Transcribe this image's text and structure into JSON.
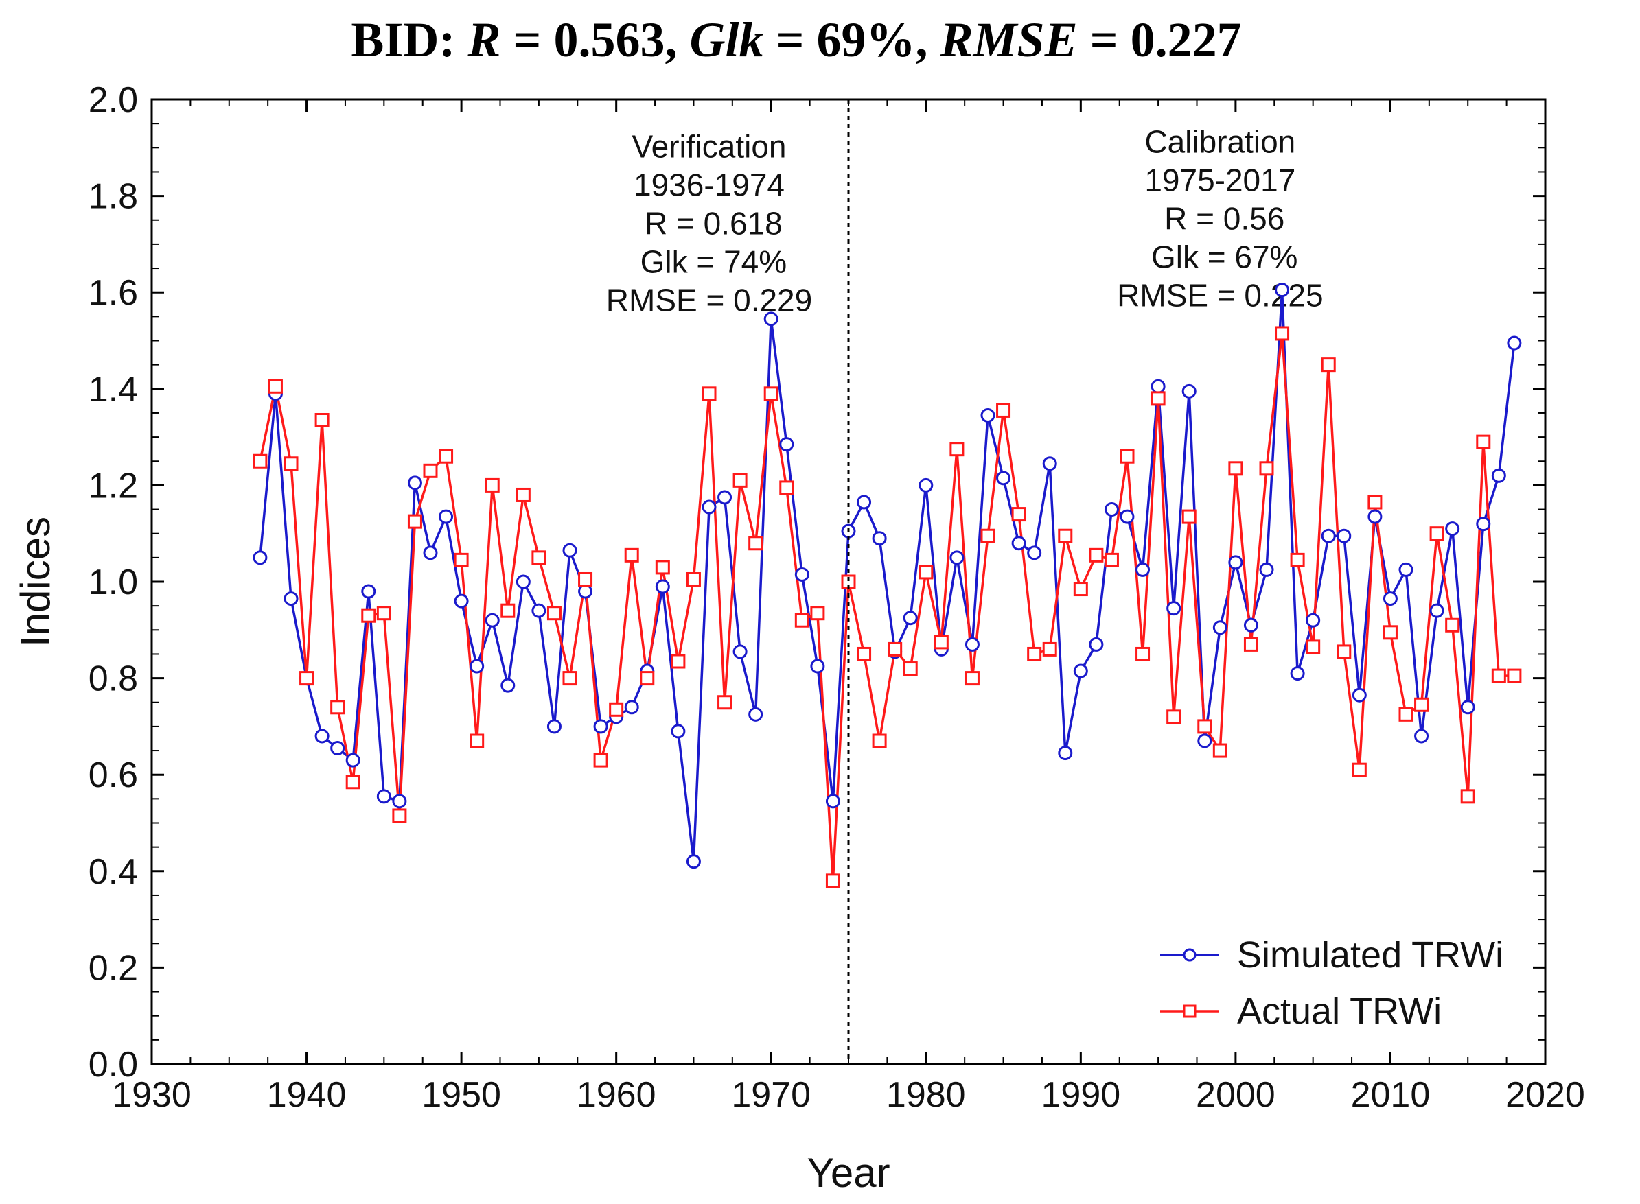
{
  "chart_data": {
    "type": "line",
    "title_parts": [
      {
        "text": "BID: ",
        "italic": false
      },
      {
        "text": "R",
        "italic": true
      },
      {
        "text": " = 0.563, ",
        "italic": false
      },
      {
        "text": "Glk",
        "italic": true
      },
      {
        "text": " = 69%, ",
        "italic": false
      },
      {
        "text": "RMSE",
        "italic": true
      },
      {
        "text": " = 0.227",
        "italic": false
      }
    ],
    "xlabel": "Year",
    "ylabel": "Indices",
    "xlim": [
      1930,
      2020
    ],
    "ylim": [
      0,
      2
    ],
    "x_ticks": [
      1930,
      1940,
      1950,
      1960,
      1970,
      1980,
      1990,
      2000,
      2010,
      2020
    ],
    "y_ticks": [
      "0.0",
      "0.2",
      "0.4",
      "0.6",
      "0.8",
      "1.0",
      "1.2",
      "1.4",
      "1.6",
      "1.8",
      "2.0"
    ],
    "grid": false,
    "legend": "bottom-right",
    "divider_x": 1975,
    "annotations": [
      {
        "x": 1966,
        "y_top": 1.88,
        "lines": [
          "Verification",
          "1936-1974",
          " R = 0.618",
          " Glk = 74%",
          "RMSE = 0.229"
        ]
      },
      {
        "x": 1999,
        "y_top": 1.89,
        "lines": [
          "Calibration",
          "1975-2017",
          " R = 0.56",
          " Glk = 67%",
          "RMSE = 0.225"
        ]
      }
    ],
    "x": [
      1937,
      1938,
      1939,
      1940,
      1941,
      1942,
      1943,
      1944,
      1945,
      1946,
      1947,
      1948,
      1949,
      1950,
      1951,
      1952,
      1953,
      1954,
      1955,
      1956,
      1957,
      1958,
      1959,
      1960,
      1961,
      1962,
      1963,
      1964,
      1965,
      1966,
      1967,
      1968,
      1969,
      1970,
      1971,
      1972,
      1973,
      1974,
      1975,
      1976,
      1977,
      1978,
      1979,
      1980,
      1981,
      1982,
      1983,
      1984,
      1985,
      1986,
      1987,
      1988,
      1989,
      1990,
      1991,
      1992,
      1993,
      1994,
      1995,
      1996,
      1997,
      1998,
      1999,
      2000,
      2001,
      2002,
      2003,
      2004,
      2005,
      2006,
      2007,
      2008,
      2009,
      2010,
      2011,
      2012,
      2013,
      2014,
      2015,
      2016,
      2017,
      2018
    ],
    "series": [
      {
        "name": "Simulated TRWi",
        "color": "#1a1acc",
        "marker": "circle",
        "values": [
          1.05,
          1.39,
          0.965,
          0.8,
          0.68,
          0.655,
          0.63,
          0.98,
          0.555,
          0.545,
          1.205,
          1.06,
          1.135,
          0.96,
          0.825,
          0.92,
          0.785,
          1.0,
          0.94,
          0.7,
          1.065,
          0.98,
          0.7,
          0.72,
          0.74,
          0.815,
          0.99,
          0.69,
          0.42,
          1.155,
          1.175,
          0.855,
          0.725,
          1.545,
          1.285,
          1.015,
          0.825,
          0.545,
          1.105,
          1.165,
          1.09,
          0.855,
          0.925,
          1.2,
          0.86,
          1.05,
          0.87,
          1.345,
          1.215,
          1.08,
          1.06,
          1.245,
          0.645,
          0.815,
          0.87,
          1.15,
          1.135,
          1.025,
          1.405,
          0.945,
          1.395,
          0.67,
          0.905,
          1.04,
          0.91,
          1.025,
          1.605,
          0.81,
          0.92,
          1.095,
          1.095,
          0.765,
          1.135,
          0.965,
          1.025,
          0.68,
          0.94,
          1.11,
          0.74,
          1.12,
          1.22,
          1.495
        ]
      },
      {
        "name": "Actual TRWi",
        "color": "#ff1a1a",
        "marker": "square",
        "values": [
          1.25,
          1.405,
          1.245,
          0.8,
          1.335,
          0.74,
          0.585,
          0.93,
          0.935,
          0.515,
          1.125,
          1.23,
          1.26,
          1.045,
          0.67,
          1.2,
          0.94,
          1.18,
          1.05,
          0.935,
          0.8,
          1.005,
          0.63,
          0.735,
          1.055,
          0.8,
          1.03,
          0.835,
          1.005,
          1.39,
          0.75,
          1.21,
          1.08,
          1.39,
          1.195,
          0.92,
          0.935,
          0.38,
          1.0,
          0.85,
          0.67,
          0.86,
          0.82,
          1.02,
          0.875,
          1.275,
          0.8,
          1.095,
          1.355,
          1.14,
          0.85,
          0.86,
          1.095,
          0.985,
          1.055,
          1.045,
          1.26,
          0.85,
          1.38,
          0.72,
          1.135,
          0.7,
          0.65,
          1.235,
          0.87,
          1.235,
          1.515,
          1.045,
          0.865,
          1.45,
          0.855,
          0.61,
          1.165,
          0.895,
          0.725,
          0.745,
          1.1,
          0.91,
          0.555,
          1.29,
          0.805,
          0.805
        ]
      }
    ]
  }
}
